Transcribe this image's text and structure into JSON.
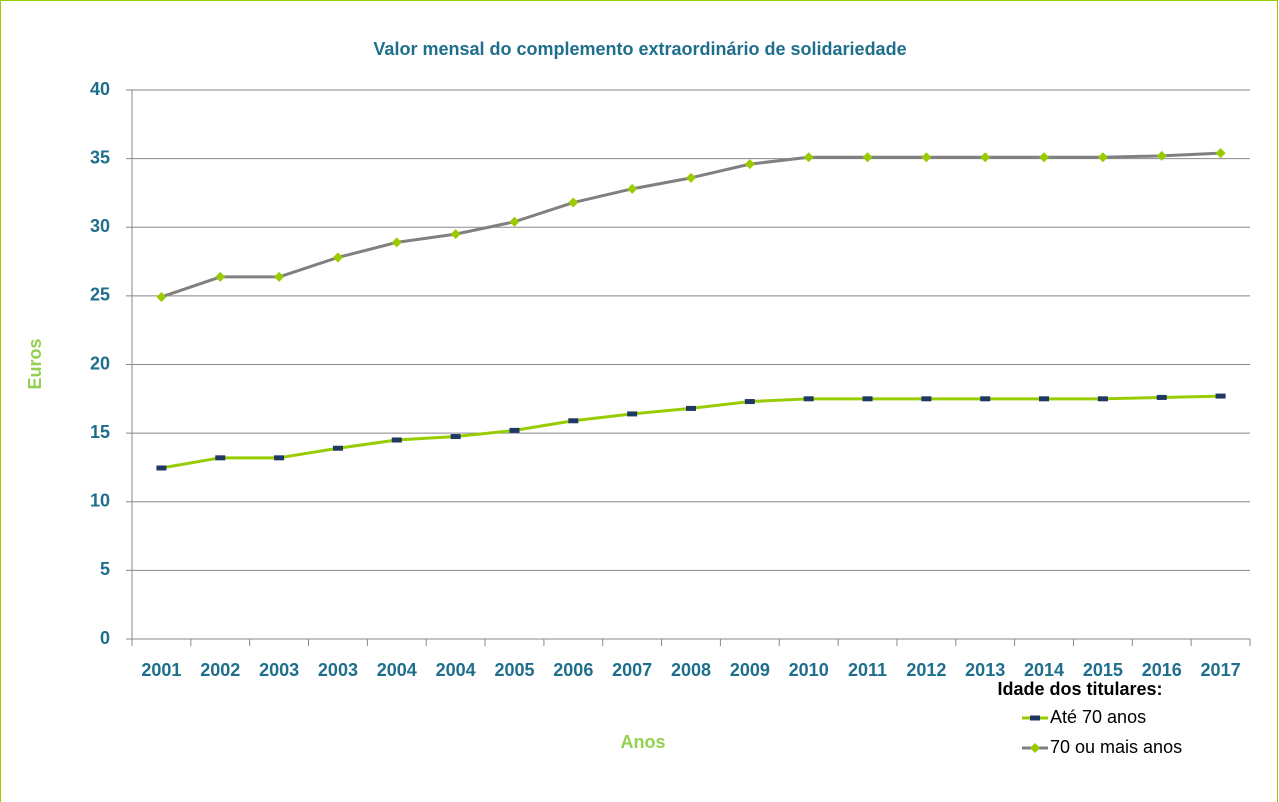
{
  "chart_data": {
    "type": "line",
    "title": "Valor mensal do complemento extraordinário de solidariedade",
    "x_label": "Anos",
    "y_label": "Euros",
    "legend_title": "Idade dos titulares:",
    "legend_position": "bottom-right",
    "grid": true,
    "categories": [
      "2001",
      "2002",
      "2003",
      "2003",
      "2004",
      "2004",
      "2005",
      "2006",
      "2007",
      "2008",
      "2009",
      "2010",
      "2011",
      "2012",
      "2013",
      "2014",
      "2015",
      "2016",
      "2017"
    ],
    "ylim": [
      0,
      40
    ],
    "yticks": [
      0,
      5,
      10,
      15,
      20,
      25,
      30,
      35,
      40
    ],
    "series": [
      {
        "name": "Até 70 anos",
        "color": "#99cc00",
        "marker_color": "#1f3864",
        "marker": "dash",
        "values": [
          12.46,
          13.2,
          13.2,
          13.9,
          14.5,
          14.75,
          15.2,
          15.9,
          16.4,
          16.8,
          17.3,
          17.5,
          17.5,
          17.5,
          17.5,
          17.5,
          17.5,
          17.6,
          17.7
        ]
      },
      {
        "name": "70 ou mais anos",
        "color": "#808080",
        "marker_color": "#99cc00",
        "marker": "diamond",
        "values": [
          24.92,
          26.38,
          26.38,
          27.8,
          28.9,
          29.5,
          30.4,
          31.8,
          32.8,
          33.6,
          34.6,
          35.1,
          35.1,
          35.1,
          35.1,
          35.1,
          35.1,
          35.2,
          35.4
        ]
      }
    ]
  }
}
